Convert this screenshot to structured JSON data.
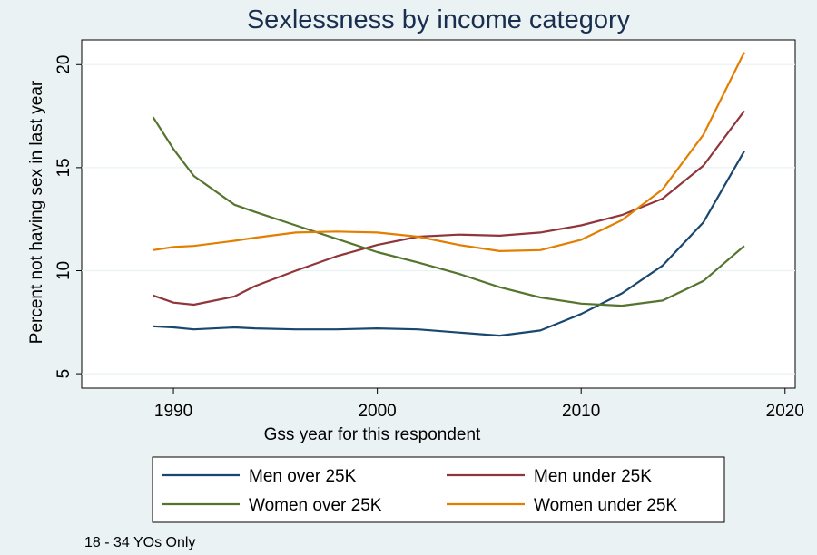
{
  "chart_data": {
    "type": "line",
    "title": "Sexlessness by income category",
    "xlabel": "Gss year for this respondent",
    "ylabel": "Percent not having sex in last year",
    "note": "18 - 34 YOs Only",
    "xlim": [
      1985.5,
      2020.5
    ],
    "ylim": [
      4.3,
      21.2
    ],
    "xticks": [
      1990,
      2000,
      2010,
      2020
    ],
    "yticks": [
      5,
      10,
      15,
      20
    ],
    "grid": true,
    "legend_position": "bottom",
    "series": [
      {
        "name": "Men over 25K",
        "color": "#1a476f",
        "x": [
          1989,
          1990,
          1991,
          1993,
          1994,
          1996,
          1998,
          2000,
          2002,
          2004,
          2006,
          2008,
          2010,
          2012,
          2014,
          2016,
          2018
        ],
        "y": [
          7.3,
          7.25,
          7.15,
          7.25,
          7.2,
          7.15,
          7.15,
          7.2,
          7.15,
          7.0,
          6.85,
          7.1,
          7.9,
          8.9,
          10.25,
          12.35,
          15.8
        ]
      },
      {
        "name": "Men under 25K",
        "color": "#90353b",
        "x": [
          1989,
          1990,
          1991,
          1993,
          1994,
          1996,
          1998,
          2000,
          2002,
          2004,
          2006,
          2008,
          2010,
          2012,
          2014,
          2016,
          2018
        ],
        "y": [
          8.8,
          8.45,
          8.35,
          8.75,
          9.25,
          10.0,
          10.7,
          11.25,
          11.65,
          11.75,
          11.7,
          11.85,
          12.2,
          12.7,
          13.5,
          15.1,
          17.75
        ]
      },
      {
        "name": "Women over 25K",
        "color": "#55752f",
        "x": [
          1989,
          1990,
          1991,
          1993,
          1994,
          1996,
          1998,
          2000,
          2002,
          2004,
          2006,
          2008,
          2010,
          2012,
          2014,
          2016,
          2018
        ],
        "y": [
          17.45,
          15.9,
          14.6,
          13.2,
          12.85,
          12.2,
          11.55,
          10.9,
          10.4,
          9.85,
          9.2,
          8.7,
          8.4,
          8.3,
          8.55,
          9.5,
          11.2
        ]
      },
      {
        "name": "Women under 25K",
        "color": "#e37e00",
        "x": [
          1989,
          1990,
          1991,
          1993,
          1994,
          1996,
          1998,
          2000,
          2002,
          2004,
          2006,
          2008,
          2010,
          2012,
          2014,
          2016,
          2018
        ],
        "y": [
          11.0,
          11.15,
          11.2,
          11.45,
          11.6,
          11.85,
          11.9,
          11.85,
          11.65,
          11.25,
          10.95,
          11.0,
          11.5,
          12.45,
          13.95,
          16.6,
          20.6
        ]
      }
    ]
  }
}
